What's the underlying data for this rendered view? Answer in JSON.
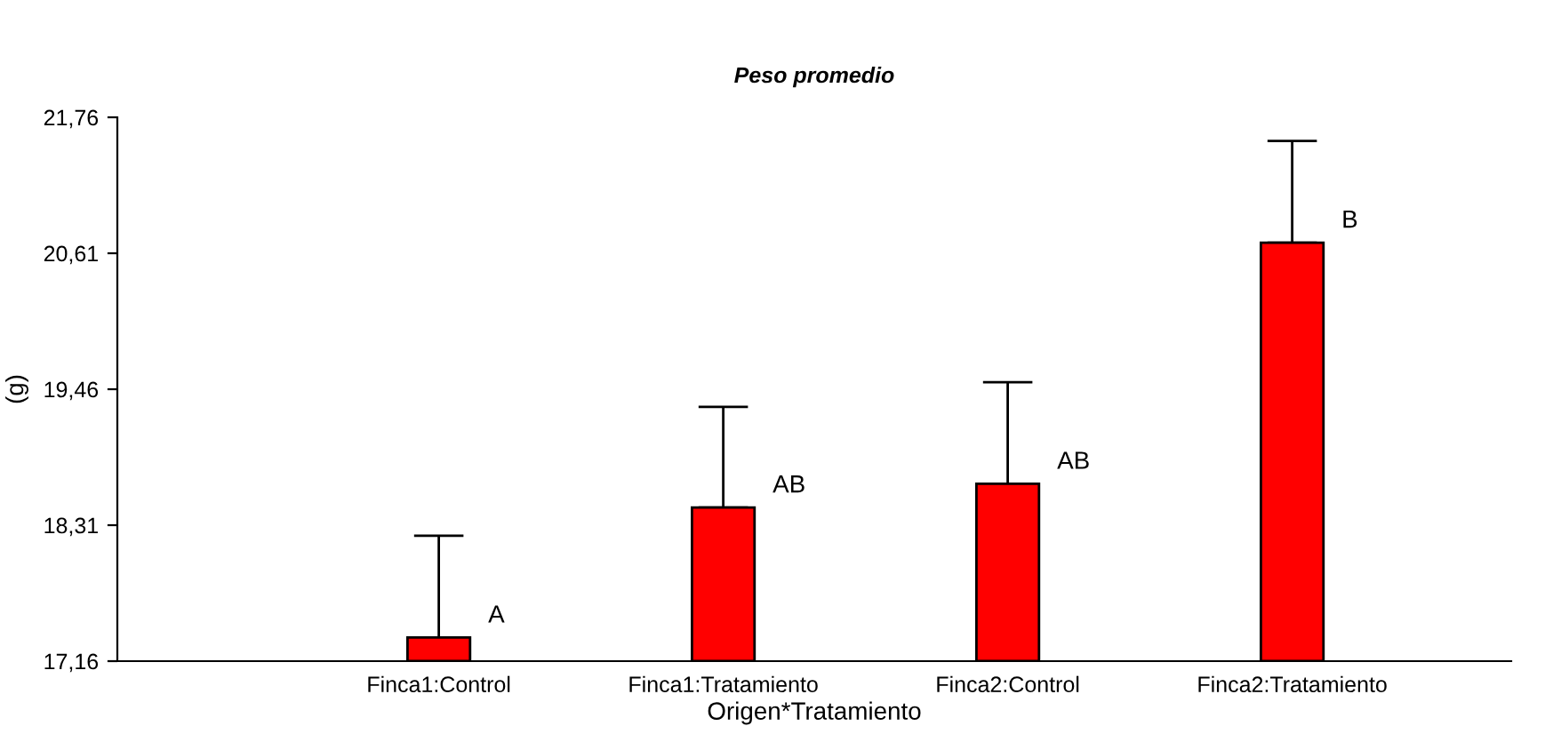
{
  "chart_data": {
    "type": "bar",
    "title": "Peso promedio",
    "xlabel": "Origen*Tratamiento",
    "ylabel": "(g)",
    "categories": [
      "Finca1:Control",
      "Finca1:Tratamiento",
      "Finca2:Control",
      "Finca2:Tratamiento"
    ],
    "values": [
      17.36,
      18.46,
      18.66,
      20.7
    ],
    "errors": [
      [
        17.36,
        18.22
      ],
      [
        18.46,
        19.31
      ],
      [
        18.66,
        19.52
      ],
      [
        20.7,
        21.56
      ]
    ],
    "color": "#ff0000",
    "ylim": [
      17.16,
      21.76
    ],
    "yticks": [
      {
        "value": 17.16,
        "label": "17,16"
      },
      {
        "value": 18.31,
        "label": "18,31"
      },
      {
        "value": 19.46,
        "label": "19,46"
      },
      {
        "value": 20.61,
        "label": "20,61"
      },
      {
        "value": 21.76,
        "label": "21,76"
      }
    ],
    "grid": false,
    "legend": false,
    "annotations": [
      {
        "text": "A",
        "x": "Finca1:Control",
        "y": 17.36
      },
      {
        "text": "AB",
        "x": "Finca1:Tratamiento",
        "y": 18.46
      },
      {
        "text": "AB",
        "x": "Finca2:Control",
        "y": 18.66
      },
      {
        "text": "B",
        "x": "Finca2:Tratamiento",
        "y": 20.7
      }
    ]
  }
}
